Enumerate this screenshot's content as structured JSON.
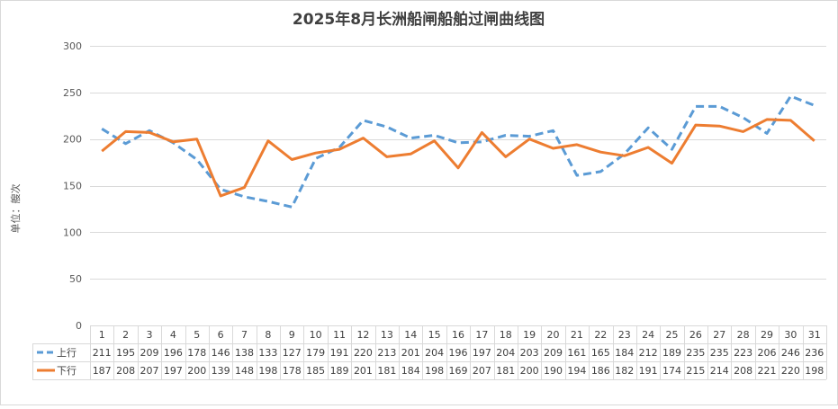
{
  "chart_data": {
    "type": "line",
    "title": "2025年8月长洲船闸船舶过闸曲线图",
    "ylabel": "单位：艘次",
    "ylim": [
      0,
      300
    ],
    "yticks": [
      0,
      50,
      100,
      150,
      200,
      250,
      300
    ],
    "grid": true,
    "legend": "data-table",
    "categories": [
      "1",
      "2",
      "3",
      "4",
      "5",
      "6",
      "7",
      "8",
      "9",
      "10",
      "11",
      "12",
      "13",
      "14",
      "15",
      "16",
      "17",
      "18",
      "19",
      "20",
      "21",
      "22",
      "23",
      "24",
      "25",
      "26",
      "27",
      "28",
      "29",
      "30",
      "31"
    ],
    "series": [
      {
        "name": "上行",
        "color": "#5b9bd5",
        "style": "dashed",
        "values": [
          211,
          195,
          209,
          196,
          178,
          146,
          138,
          133,
          127,
          179,
          191,
          220,
          213,
          201,
          204,
          196,
          197,
          204,
          203,
          209,
          161,
          165,
          184,
          212,
          189,
          235,
          235,
          223,
          206,
          246,
          236
        ]
      },
      {
        "name": "下行",
        "color": "#ed7d31",
        "style": "solid",
        "values": [
          187,
          208,
          207,
          197,
          200,
          139,
          148,
          198,
          178,
          185,
          189,
          201,
          181,
          184,
          198,
          169,
          207,
          181,
          200,
          190,
          194,
          186,
          182,
          191,
          174,
          215,
          214,
          208,
          221,
          220,
          198
        ]
      }
    ]
  }
}
